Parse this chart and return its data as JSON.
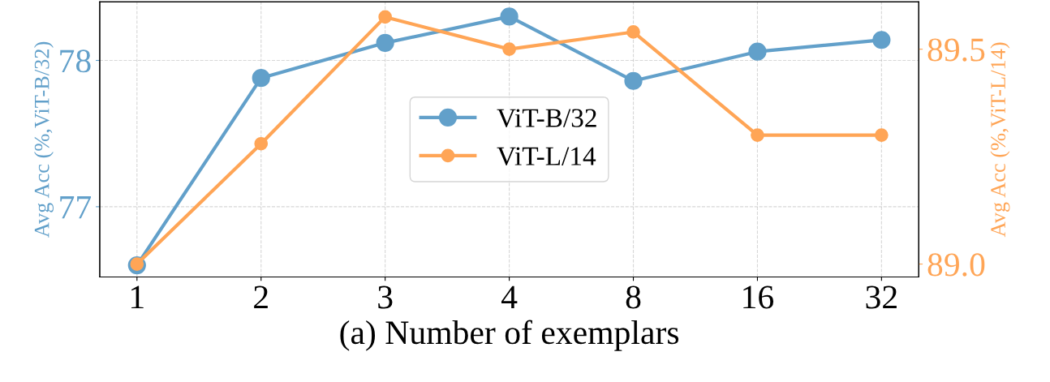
{
  "chart_data": {
    "type": "line",
    "xlabel": "(a) Number of exemplars",
    "ylabel": "Avg Acc (%,ViT-B/32)",
    "y2label": "Avg Acc (%,ViT-L/14)",
    "categories": [
      "1",
      "2",
      "3",
      "4",
      "8",
      "16",
      "32"
    ],
    "series": [
      {
        "name": "ViT-B/32",
        "color": "#62a0ca",
        "values": [
          76.6,
          77.88,
          78.12,
          78.3,
          77.86,
          78.06,
          78.14
        ]
      },
      {
        "name": "ViT-L/14",
        "color": "#ffa556",
        "axis": "y2",
        "values": [
          89.0,
          89.28,
          89.575,
          89.5,
          89.54,
          89.3,
          89.3
        ]
      }
    ],
    "ylim": [
      76.52,
      78.4
    ],
    "yticks": [
      77,
      78
    ],
    "y2lim": [
      88.97,
      89.61
    ],
    "y2ticks": [
      {
        "value": 89.0,
        "label": "89.0"
      },
      {
        "value": 89.5,
        "label": "89.5"
      }
    ],
    "grid": true,
    "legend": "center",
    "marker": "circle",
    "line_style": "solid"
  }
}
